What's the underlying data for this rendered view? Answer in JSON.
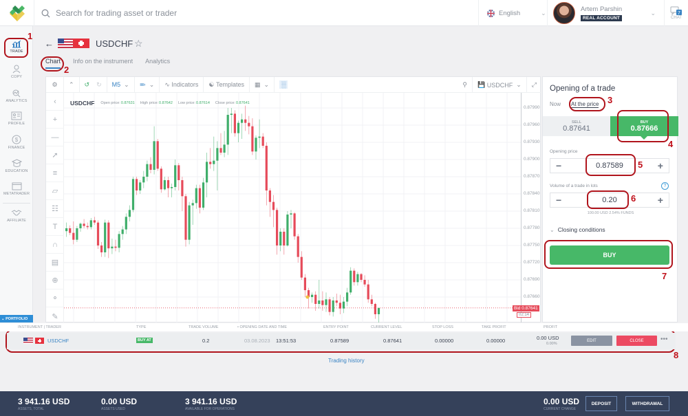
{
  "topbar": {
    "search_placeholder": "Search for trading asset or trader",
    "language": "English",
    "user_name": "Artem Parshin",
    "account_type": "REAL ACCOUNT",
    "chat_label": "CHAT",
    "chat_count": "7"
  },
  "sidebar": {
    "items": [
      {
        "label": "TRADE",
        "icon": "chart-icon"
      },
      {
        "label": "COPY",
        "icon": "copy-user-icon"
      },
      {
        "label": "ANALYTICS",
        "icon": "analytics-icon"
      },
      {
        "label": "PROFILE",
        "icon": "profile-card-icon"
      },
      {
        "label": "FINANCE",
        "icon": "dollar-icon"
      },
      {
        "label": "EDUCATION",
        "icon": "graduation-cap-icon"
      },
      {
        "label": "METATRADER",
        "icon": "window-icon"
      },
      {
        "label": "AFFILIATE",
        "icon": "handshake-icon"
      }
    ],
    "portfolio_label": "PORTFOLIO"
  },
  "header": {
    "symbol": "USDCHF",
    "tabs": [
      {
        "label": "Chart",
        "active": true
      },
      {
        "label": "Info on the instrument",
        "active": false
      },
      {
        "label": "Analytics",
        "active": false
      }
    ]
  },
  "chart_toolbar": {
    "timeframe": "M5",
    "indicators": "Indicators",
    "templates": "Templates",
    "layout_name": "USDCHF"
  },
  "chart_info": {
    "symbol": "USDCHF",
    "open_label": "Open price:",
    "open": "0.87631",
    "high_label": "High price:",
    "high": "0.87642",
    "low_label": "Low price:",
    "low": "0.87614",
    "close_label": "Close price:",
    "close": "0.87641"
  },
  "chart_data": {
    "type": "candlestick",
    "title": "USDCHF",
    "timeframe": "M5",
    "yticks": [
      "0.87990",
      "0.87960",
      "0.87930",
      "0.87900",
      "0.87870",
      "0.87840",
      "0.87810",
      "0.87780",
      "0.87750",
      "0.87720",
      "0.87690",
      "0.87660"
    ],
    "ylim": [
      0.8762,
      0.8801
    ],
    "bid": "0.87641",
    "bid_label": "Bid 0.87641",
    "timer": "02:14",
    "candles": [
      [
        0.87775,
        0.8779,
        0.87765,
        0.8778
      ],
      [
        0.8778,
        0.87785,
        0.87768,
        0.87772
      ],
      [
        0.87772,
        0.87792,
        0.87752,
        0.8776
      ],
      [
        0.8776,
        0.87784,
        0.87756,
        0.8778
      ],
      [
        0.8778,
        0.8779,
        0.87774,
        0.87788
      ],
      [
        0.87788,
        0.87796,
        0.8778,
        0.87784
      ],
      [
        0.87784,
        0.8779,
        0.87778,
        0.87782
      ],
      [
        0.87782,
        0.87798,
        0.87778,
        0.87794
      ],
      [
        0.87794,
        0.878,
        0.87786,
        0.8779
      ],
      [
        0.8779,
        0.87794,
        0.87744,
        0.8775
      ],
      [
        0.8775,
        0.87756,
        0.8773,
        0.87738
      ],
      [
        0.87738,
        0.87795,
        0.8773,
        0.8779
      ],
      [
        0.8779,
        0.87794,
        0.87728,
        0.87745
      ],
      [
        0.87745,
        0.87762,
        0.87735,
        0.87748
      ],
      [
        0.87748,
        0.8776,
        0.8774,
        0.87746
      ],
      [
        0.87746,
        0.87775,
        0.87738,
        0.8777
      ],
      [
        0.8777,
        0.87784,
        0.8776,
        0.87778
      ],
      [
        0.87778,
        0.87806,
        0.8777,
        0.878
      ],
      [
        0.878,
        0.8782,
        0.87792,
        0.87812
      ],
      [
        0.87812,
        0.8787,
        0.87808,
        0.87866
      ],
      [
        0.87866,
        0.8787,
        0.87838,
        0.87846
      ],
      [
        0.87846,
        0.87864,
        0.8784,
        0.8786
      ],
      [
        0.8786,
        0.8788,
        0.8785,
        0.8787
      ],
      [
        0.8787,
        0.87898,
        0.87862,
        0.87892
      ],
      [
        0.87892,
        0.87904,
        0.87876,
        0.87882
      ],
      [
        0.87882,
        0.87958,
        0.87874,
        0.87932
      ],
      [
        0.87932,
        0.87936,
        0.8788,
        0.87884
      ],
      [
        0.87884,
        0.87888,
        0.87842,
        0.87848
      ],
      [
        0.87848,
        0.8787,
        0.87846,
        0.87864
      ],
      [
        0.87864,
        0.8787,
        0.87834,
        0.8785
      ],
      [
        0.8785,
        0.87858,
        0.87834,
        0.87852
      ],
      [
        0.87852,
        0.879,
        0.87846,
        0.8789
      ],
      [
        0.8789,
        0.87894,
        0.87846,
        0.87864
      ],
      [
        0.87864,
        0.8787,
        0.8781,
        0.87836
      ],
      [
        0.87836,
        0.8784,
        0.87748,
        0.8776
      ],
      [
        0.8776,
        0.87826,
        0.87752,
        0.8782
      ],
      [
        0.8782,
        0.8783,
        0.87786,
        0.87824
      ],
      [
        0.87824,
        0.87856,
        0.87814,
        0.8785
      ],
      [
        0.8785,
        0.87856,
        0.87806,
        0.87816
      ],
      [
        0.87816,
        0.87868,
        0.87812,
        0.8786
      ],
      [
        0.8786,
        0.87912,
        0.87834,
        0.87896
      ],
      [
        0.87896,
        0.8792,
        0.87884,
        0.87892
      ],
      [
        0.87892,
        0.8794,
        0.8788,
        0.87898
      ],
      [
        0.87898,
        0.87932,
        0.87846,
        0.8792
      ],
      [
        0.8792,
        0.87946,
        0.87908,
        0.87912
      ],
      [
        0.87912,
        0.8795,
        0.87904,
        0.87926
      ],
      [
        0.87926,
        0.8799,
        0.87908,
        0.87978
      ],
      [
        0.87978,
        0.8799,
        0.87946,
        0.8798
      ],
      [
        0.8798,
        0.87986,
        0.8794,
        0.87946
      ],
      [
        0.87946,
        0.87968,
        0.8793,
        0.87964
      ],
      [
        0.87964,
        0.8798,
        0.87936,
        0.8797
      ],
      [
        0.8797,
        0.87994,
        0.8795,
        0.87964
      ],
      [
        0.87964,
        0.87976,
        0.87944,
        0.87958
      ],
      [
        0.87958,
        0.87972,
        0.87908,
        0.87914
      ],
      [
        0.87914,
        0.87942,
        0.879,
        0.87938
      ],
      [
        0.87938,
        0.8797,
        0.8792,
        0.8794
      ],
      [
        0.8794,
        0.87946,
        0.8792,
        0.87924
      ],
      [
        0.87924,
        0.8793,
        0.8782,
        0.87846
      ],
      [
        0.87846,
        0.8785,
        0.878,
        0.87826
      ],
      [
        0.87826,
        0.87838,
        0.87782,
        0.87812
      ],
      [
        0.87812,
        0.87816,
        0.87734,
        0.8775
      ],
      [
        0.8775,
        0.8778,
        0.8774,
        0.87774
      ],
      [
        0.87774,
        0.8778,
        0.87734,
        0.8775
      ],
      [
        0.8775,
        0.8781,
        0.87748,
        0.87804
      ],
      [
        0.87804,
        0.87812,
        0.8778,
        0.87806
      ],
      [
        0.87806,
        0.87808,
        0.8776,
        0.87766
      ],
      [
        0.87766,
        0.8777,
        0.8772,
        0.8773
      ],
      [
        0.8773,
        0.8774,
        0.8769,
        0.87694
      ],
      [
        0.87694,
        0.877,
        0.8766,
        0.87672
      ],
      [
        0.87672,
        0.87676,
        0.8764,
        0.8766
      ],
      [
        0.8766,
        0.87668,
        0.8765,
        0.87664
      ],
      [
        0.87664,
        0.8767,
        0.87636,
        0.87648
      ],
      [
        0.87648,
        0.8769,
        0.8764,
        0.87654
      ],
      [
        0.87654,
        0.8767,
        0.87636,
        0.87646
      ],
      [
        0.87646,
        0.87668,
        0.87634,
        0.87656
      ],
      [
        0.87656,
        0.8766,
        0.87628,
        0.87634
      ],
      [
        0.87634,
        0.8766,
        0.87626,
        0.87654
      ],
      [
        0.87654,
        0.87666,
        0.87644,
        0.8765
      ],
      [
        0.8765,
        0.87664,
        0.8763,
        0.8764
      ],
      [
        0.8764,
        0.8766,
        0.87632,
        0.87652
      ],
      [
        0.87652,
        0.87676,
        0.87644,
        0.87668
      ],
      [
        0.87668,
        0.87712,
        0.87664,
        0.87706
      ],
      [
        0.87706,
        0.8771,
        0.8768,
        0.87686
      ],
      [
        0.87686,
        0.87704,
        0.8768,
        0.877
      ],
      [
        0.877,
        0.87702,
        0.87686,
        0.8769
      ],
      [
        0.8769,
        0.87698,
        0.87678,
        0.87682
      ],
      [
        0.87682,
        0.8769,
        0.8765,
        0.87656
      ],
      [
        0.87656,
        0.87664,
        0.87644,
        0.87648
      ],
      [
        0.87648,
        0.8765,
        0.87622,
        0.8763
      ],
      [
        0.8763,
        0.87641,
        0.87614,
        0.87641
      ]
    ]
  },
  "trade_panel": {
    "title": "Opening of a trade",
    "modes": [
      {
        "label": "Now",
        "active": false
      },
      {
        "label": "At the price",
        "active": true
      }
    ],
    "sell_label": "SELL",
    "sell_price": "0.87641",
    "buy_label": "BUY",
    "buy_price": "0.87666",
    "opening_price_label": "Opening price",
    "opening_price": "0.87589",
    "volume_label": "Volume of a trade in lots",
    "volume": "0.20",
    "funds_info": "100.00 USD   2.54% FUNDS",
    "closing_conditions": "Closing conditions",
    "buy_button": "BUY",
    "minus": "−",
    "plus": "+",
    "help": "?"
  },
  "portfolio": {
    "columns": [
      "INSTRUMENT | TRADER",
      "TYPE",
      "TRADE VOLUME",
      "• OPENING DATE AND TIME",
      "ENTRY POINT",
      "CURRENT LEVEL",
      "STOP LOSS",
      "TAKE PROFIT",
      "PROFIT"
    ],
    "rows": [
      {
        "instrument": "USDCHF",
        "type": "BUY AT",
        "volume": "0.2",
        "date": "03.08.2023",
        "time": "13:51:53",
        "entry": "0.87589",
        "current": "0.87641",
        "stop_loss": "0.00000",
        "take_profit": "0.00000",
        "profit": "0.00 USD",
        "profit_pct": "0.00%",
        "edit": "EDIT",
        "close": "CLOSE",
        "more": "•••"
      }
    ],
    "history_link": "Trading history"
  },
  "footer": {
    "stats": [
      {
        "value": "3 941.16 USD",
        "label": "ASSETS, TOTAL"
      },
      {
        "value": "0.00 USD",
        "label": "ASSETS USED"
      },
      {
        "value": "3 941.16 USD",
        "label": "AVAILABLE FOR OPERATIONS"
      },
      {
        "value": "0.00 USD",
        "label": "CURRENT CHANGE"
      }
    ],
    "deposit": "DEPOSIT",
    "withdrawal": "WITHDRAWAL"
  },
  "annotations": [
    "1",
    "2",
    "3",
    "4",
    "5",
    "6",
    "7",
    "8"
  ],
  "colors": {
    "up": "#3fae6a",
    "down": "#e64b5a",
    "buy": "#47b868",
    "close": "#ec4a62",
    "footer": "#35415a",
    "accent": "#3a84c4",
    "annotation": "#b0141c"
  }
}
